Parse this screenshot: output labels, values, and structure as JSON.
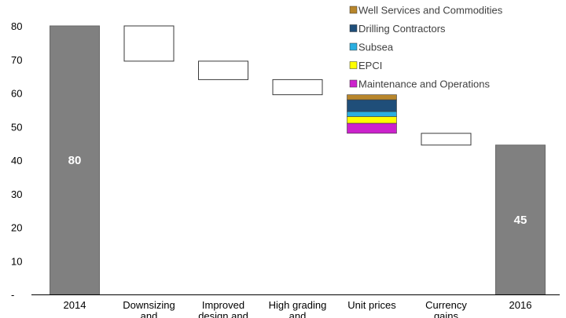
{
  "chart_data": {
    "type": "bar",
    "subtype": "waterfall",
    "categories": [
      "2014",
      "Downsizing and",
      "Improved design and",
      "High grading and efficiency",
      "Unit prices",
      "Currency gains",
      "2016"
    ],
    "bars": [
      {
        "category": "2014",
        "kind": "total",
        "value": 80,
        "label": "80"
      },
      {
        "category": "Downsizing and",
        "kind": "step",
        "from": 80,
        "to": 69.5
      },
      {
        "category": "Improved design and",
        "kind": "step",
        "from": 69.5,
        "to": 64
      },
      {
        "category": "High grading and efficiency",
        "kind": "step",
        "from": 64,
        "to": 59.5
      },
      {
        "category": "Unit prices",
        "kind": "stacked",
        "from": 59.5,
        "to": 48,
        "segments": [
          {
            "series": "Maintenance and Operations",
            "value": 3
          },
          {
            "series": "EPCI",
            "value": 2
          },
          {
            "series": "Subsea",
            "value": 1.5
          },
          {
            "series": "Drilling Contractors",
            "value": 3.5
          },
          {
            "series": "Well Services and Commodities",
            "value": 1.5
          }
        ]
      },
      {
        "category": "Currency gains",
        "kind": "step",
        "from": 48,
        "to": 44.5
      },
      {
        "category": "2016",
        "kind": "total",
        "value": 44.5,
        "label": "45"
      }
    ],
    "y_ticks": [
      "-",
      "10",
      "20",
      "30",
      "40",
      "50",
      "60",
      "70",
      "80"
    ],
    "ylim": [
      0,
      80
    ],
    "title": "",
    "xlabel": "",
    "ylabel": "",
    "grid": false,
    "legend": {
      "placement": "top-right",
      "entries": [
        {
          "name": "Well Services and Commodities",
          "color": "#b8862b"
        },
        {
          "name": "Drilling Contractors",
          "color": "#1f4e79"
        },
        {
          "name": "Subsea",
          "color": "#2aaee0"
        },
        {
          "name": "EPCI",
          "color": "#ffff00"
        },
        {
          "name": "Maintenance and Operations",
          "color": "#cc22cc"
        }
      ]
    },
    "colors": {
      "total_bar": "#808080",
      "step_fill": "#ffffff",
      "step_border": "#3a3a3a"
    }
  }
}
